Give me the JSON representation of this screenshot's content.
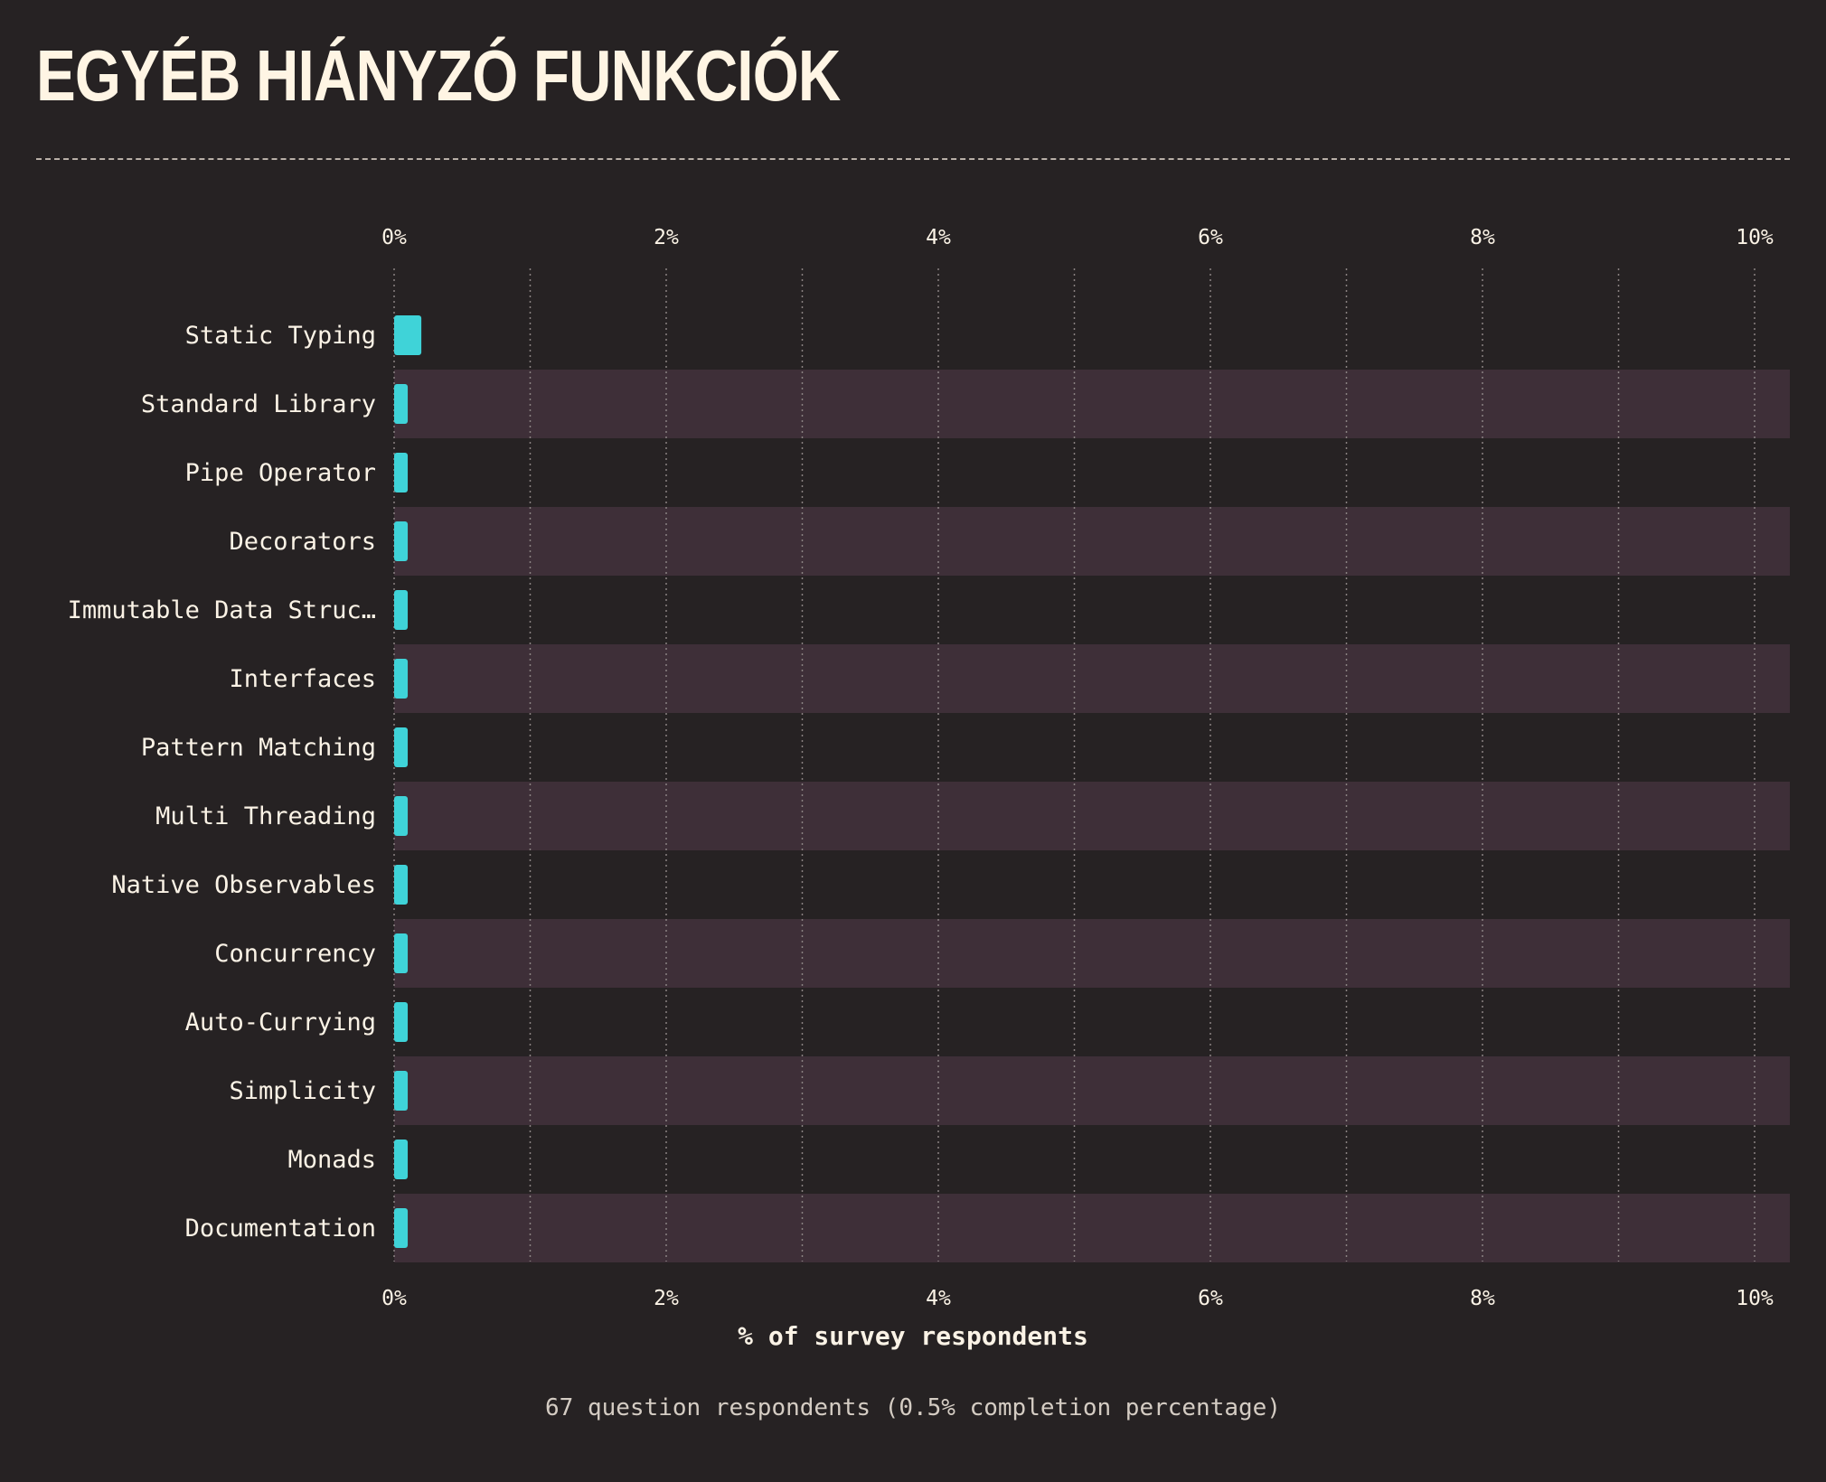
{
  "title": "EGYÉB HIÁNYZÓ FUNKCIÓK",
  "footer": "67 question respondents (0.5% completion percentage)",
  "colors": {
    "background": "#262223",
    "bar": "#3fd3d8",
    "band": "#3e2f38",
    "text": "#fbf3e6"
  },
  "chart_data": {
    "type": "bar",
    "orientation": "horizontal",
    "title": "",
    "xlabel": "% of survey respondents",
    "ylabel": "",
    "xlim": [
      0,
      10.27
    ],
    "xticks": [
      "0%",
      "2%",
      "4%",
      "6%",
      "8%",
      "10%"
    ],
    "grid": true,
    "categories": [
      "Static Typing",
      "Standard Library",
      "Pipe Operator",
      "Decorators",
      "Immutable Data Struc…",
      "Interfaces",
      "Pattern Matching",
      "Multi Threading",
      "Native Observables",
      "Concurrency",
      "Auto-Currying",
      "Simplicity",
      "Monads",
      "Documentation"
    ],
    "values": [
      0.2,
      0.1,
      0.1,
      0.1,
      0.1,
      0.1,
      0.1,
      0.1,
      0.1,
      0.1,
      0.1,
      0.1,
      0.1,
      0.1
    ]
  }
}
